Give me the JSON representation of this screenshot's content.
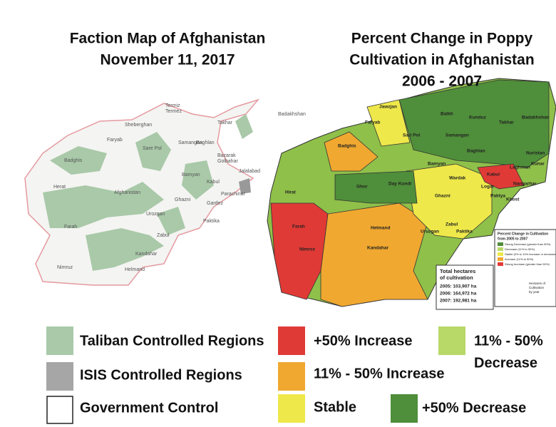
{
  "left_map": {
    "title": [
      "Faction Map of Afghanistan",
      "November 11, 2017"
    ],
    "labels": [
      "Termiz",
      "Termez",
      "Sheberghan",
      "Faryab",
      "Sare Pol",
      "Badghis",
      "Herat",
      "Samangan",
      "Baghlan",
      "Bamyan",
      "Afghanistan",
      "Kabul",
      "Bazarak",
      "Golbahar",
      "Jalalabad",
      "Parachinar",
      "Gardez",
      "Ghazni",
      "Urozgan",
      "Zabul",
      "Paktika",
      "Kandahar",
      "Helmand",
      "Farah",
      "Nimruz",
      "Takhar",
      "Badakhshan"
    ]
  },
  "right_map": {
    "title": [
      "Percent Change in Poppy",
      "Cultivation in Afghanistan",
      "2006 - 2007"
    ],
    "labels": [
      "Jawzjan",
      "Balkh",
      "Kunduz",
      "Takhar",
      "Badakhshan",
      "Faryab",
      "Sari Pol",
      "Samangan",
      "Baghlan",
      "Badghis",
      "Bamyan",
      "Nuristan",
      "Kunar",
      "Laghman",
      "Kabul",
      "Nangarhar",
      "Wardak",
      "Logar",
      "Paktya",
      "Khost",
      "Hirat",
      "Ghor",
      "Day Kundi",
      "Ghazni",
      "Uruzgan",
      "Zabul",
      "Paktika",
      "Farah",
      "Nimroz",
      "Helmand",
      "Kandahar"
    ],
    "totals": {
      "title": [
        "Total hectares",
        "of cultivation"
      ],
      "rows": [
        "2005: 103,907 ha",
        "2006: 164,972 ha",
        "2007: 192,981 ha"
      ]
    },
    "inset_legend": {
      "title": [
        "Percent Change in Cultivation",
        "from 2005 to 2007"
      ],
      "items": [
        "Strong Decrease (greater than 50%)",
        "Decrease (11% to 50%)",
        "Stable (0% to 10% increase or decrease)",
        "Increase (11% to 50%)",
        "Strong Increase (greater than 50%)"
      ],
      "note": [
        "Hectares of",
        "Cultivation",
        "by year"
      ]
    }
  },
  "legend": [
    "Taliban Controlled Regions",
    "ISIS Controlled Regions",
    "Government Control",
    "+50% Increase",
    "11% - 50% Increase",
    "Stable",
    "11% - 50%",
    "Decrease",
    "+50% Decrease"
  ]
}
